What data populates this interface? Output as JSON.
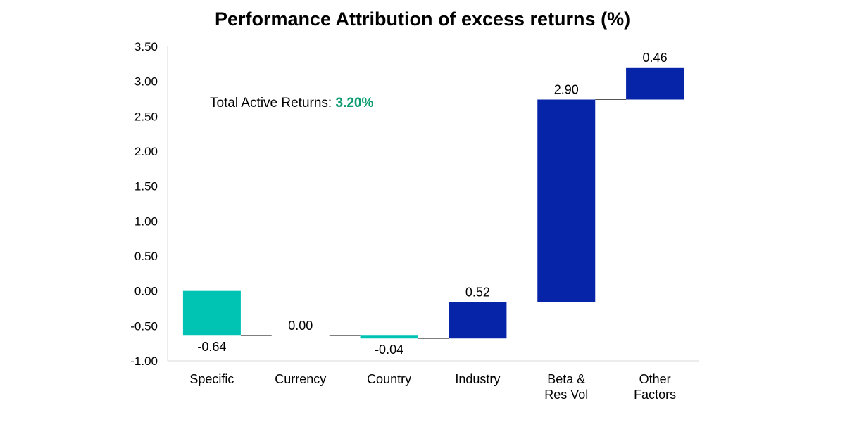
{
  "chart_data": {
    "type": "bar",
    "title": "Performance Attribution of excess returns (%)",
    "subtype": "waterfall",
    "categories": [
      [
        "Specific"
      ],
      [
        "Currency"
      ],
      [
        "Country"
      ],
      [
        "Industry"
      ],
      [
        "Beta &",
        "Res Vol"
      ],
      [
        "Other",
        "Factors"
      ]
    ],
    "values": [
      -0.64,
      0.0,
      -0.04,
      0.52,
      2.9,
      0.46
    ],
    "value_labels": [
      "-0.64",
      "0.00",
      "-0.04",
      "0.52",
      "2.90",
      "0.46"
    ],
    "ylim": [
      -1.0,
      3.5
    ],
    "yticks": [
      "-1.00",
      "-0.50",
      "0.00",
      "0.50",
      "1.00",
      "1.50",
      "2.00",
      "2.50",
      "3.00",
      "3.50"
    ],
    "grid": false,
    "legend": "none",
    "annotation": {
      "label": "Total Active Returns: ",
      "value": "3.20%",
      "value_color": "#0a9b6e"
    },
    "colors": {
      "negative": "#00c4b3",
      "positive": "#0624a8",
      "connector": "#555555",
      "axis": "#d9d9d9"
    }
  }
}
